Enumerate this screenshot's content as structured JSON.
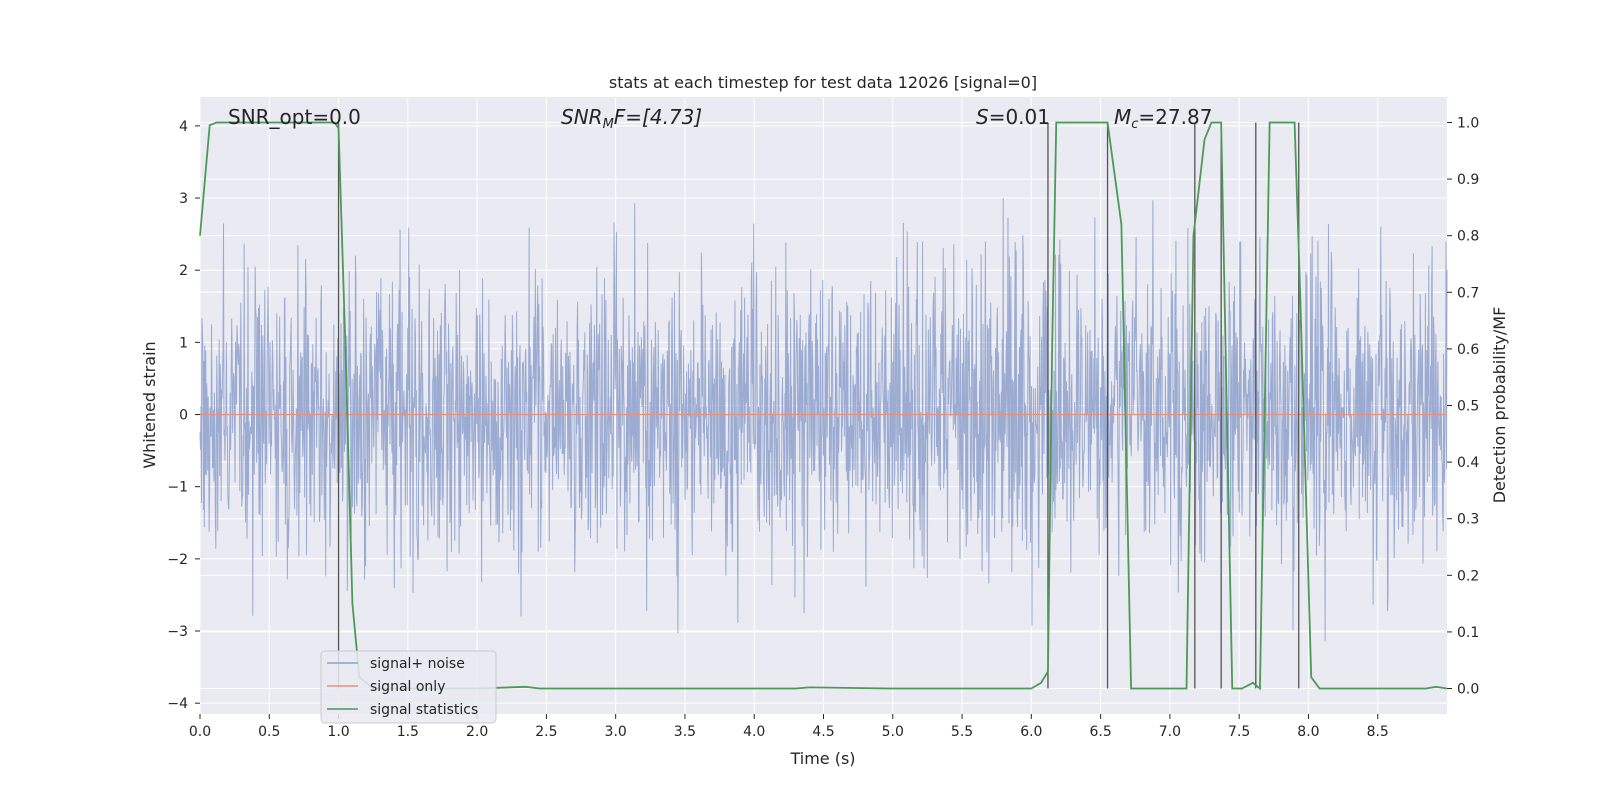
{
  "chart_data": {
    "type": "line",
    "title": "stats at each timestep for test data 12026 [signal=0]",
    "xlabel": "Time (s)",
    "ylabel_left": "Whitened strain",
    "ylabel_right": "Detection probability/MF",
    "xlim": [
      0.0,
      9.0
    ],
    "ylim_left": [
      -4.15,
      4.4
    ],
    "ylim_right": [
      -0.045,
      1.045
    ],
    "x_ticks": [
      "0.0",
      "0.5",
      "1.0",
      "1.5",
      "2.0",
      "2.5",
      "3.0",
      "3.5",
      "4.0",
      "4.5",
      "5.0",
      "5.5",
      "6.0",
      "6.5",
      "7.0",
      "7.5",
      "8.0",
      "8.5"
    ],
    "y_ticks_left": [
      "4",
      "3",
      "2",
      "1",
      "0",
      "−1",
      "−2",
      "−3",
      "−4"
    ],
    "y_ticks_right": [
      "1.0",
      "0.9",
      "0.8",
      "0.7",
      "0.6",
      "0.5",
      "0.4",
      "0.3",
      "0.2",
      "0.1",
      "0.0"
    ],
    "grid": true,
    "legend_position": "lower-left",
    "annotations": {
      "snr_opt": "SNR_opt=0.0",
      "snr_mf_main": "SNR",
      "snr_mf_sub": "M",
      "snr_mf_rest": "F=[4.73]",
      "s_main": "S",
      "s_rest": "=0.01",
      "mc_main": "M",
      "mc_sub": "c",
      "mc_rest": "=27.87"
    },
    "series": [
      {
        "name": "signal+ noise",
        "color": "#8da0cb",
        "description_amplitude_range": [
          -3.7,
          3.95
        ]
      },
      {
        "name": "signal only",
        "color": "#e8917b",
        "values_constant": 0.0
      },
      {
        "name": "signal statistics",
        "color": "#4c9a56",
        "x": [
          0.0,
          0.07,
          0.12,
          0.5,
          0.97,
          1.0,
          1.05,
          1.1,
          1.15,
          1.25,
          2.0,
          2.35,
          2.45,
          3.0,
          4.3,
          4.4,
          5.0,
          6.0,
          6.07,
          6.12,
          6.15,
          6.18,
          6.55,
          6.65,
          6.72,
          7.12,
          7.17,
          7.25,
          7.3,
          7.37,
          7.45,
          7.52,
          7.6,
          7.65,
          7.72,
          7.77,
          7.9,
          7.94,
          8.02,
          8.08,
          8.15,
          8.6,
          8.85,
          8.92,
          9.0
        ],
        "y": [
          0.8,
          0.995,
          1.0,
          1.0,
          1.0,
          0.99,
          0.6,
          0.15,
          0.02,
          0.0,
          0.0,
          0.003,
          0.0,
          0.0,
          0.0,
          0.002,
          0.0,
          0.0,
          0.01,
          0.03,
          0.6,
          1.0,
          1.0,
          0.82,
          0.0,
          0.0,
          0.8,
          0.97,
          1.0,
          1.0,
          0.0,
          0.0,
          0.01,
          0.0,
          1.0,
          1.0,
          1.0,
          0.7,
          0.02,
          0.0,
          0.0,
          0.0,
          0.0,
          0.003,
          0.0
        ]
      }
    ],
    "vertical_markers": [
      1.0,
      6.12,
      6.55,
      7.18,
      7.37,
      7.62,
      7.93
    ]
  }
}
